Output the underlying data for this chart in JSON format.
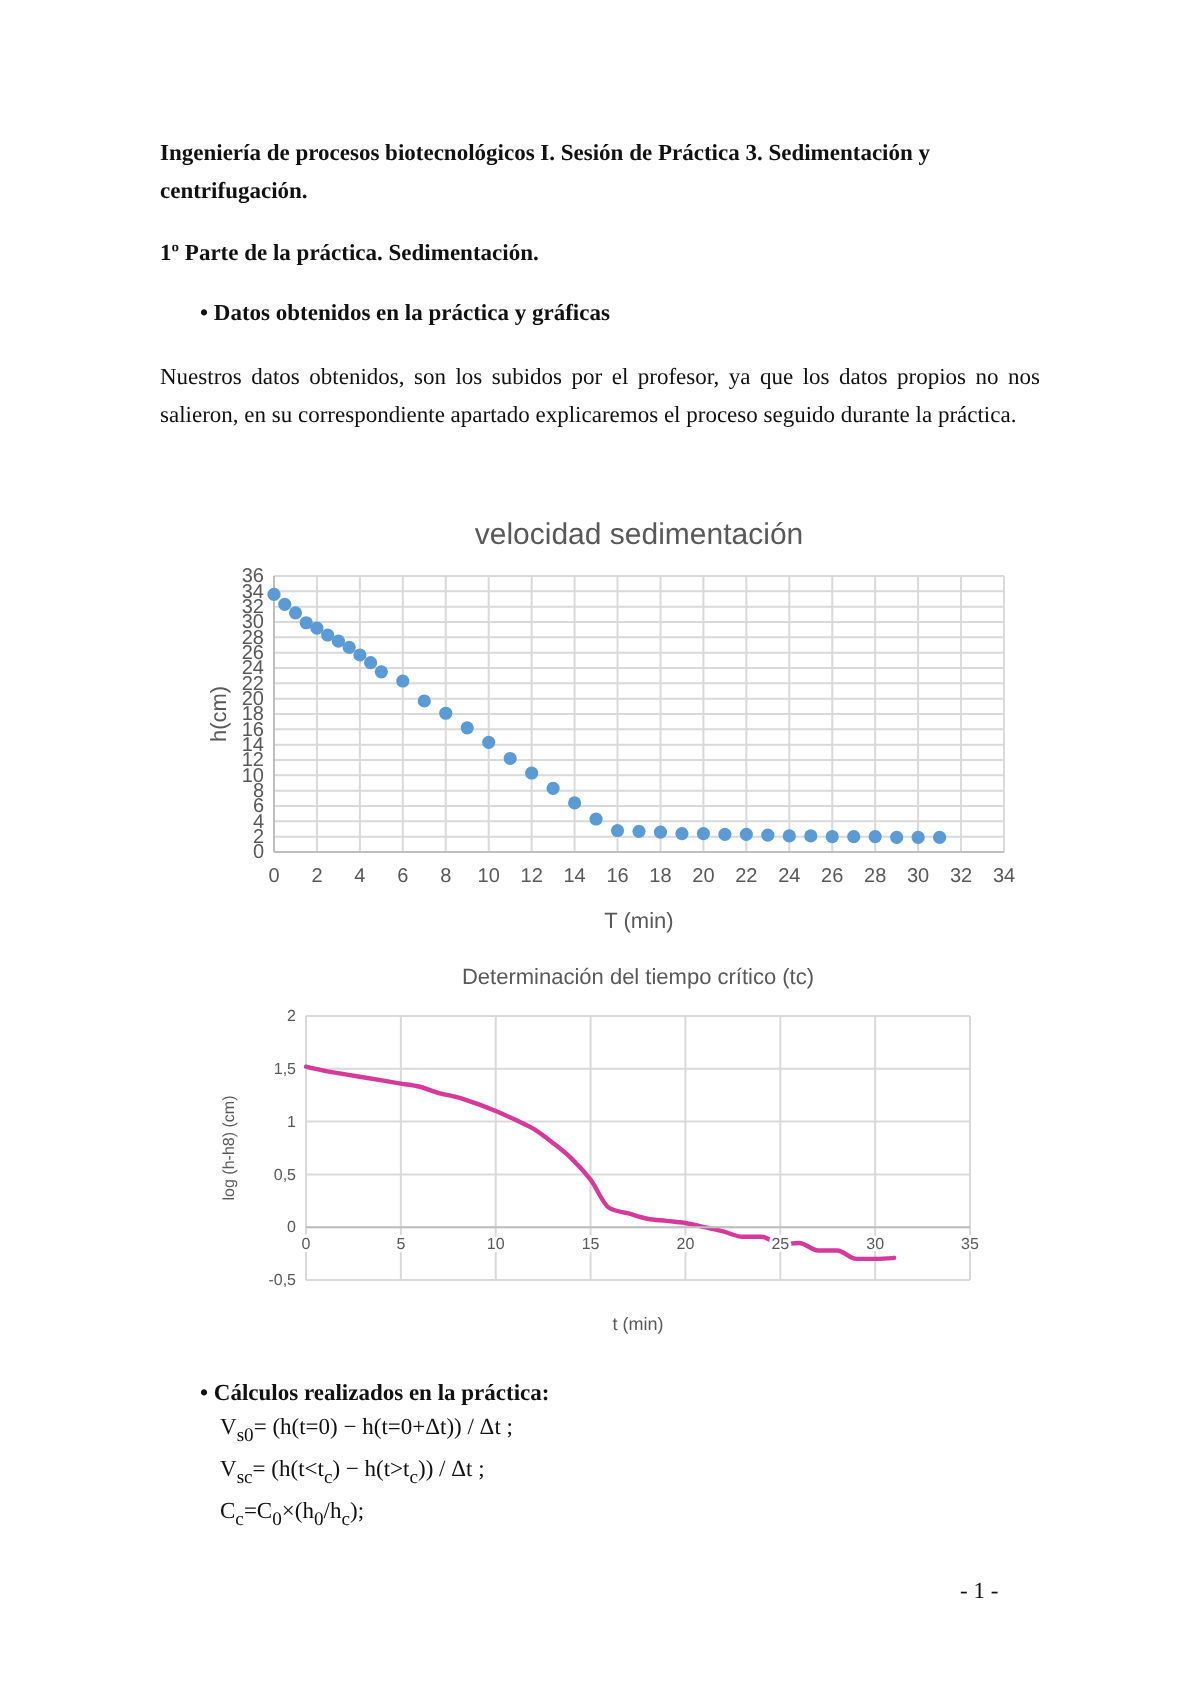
{
  "chart_data": [
    {
      "type": "scatter",
      "title": "velocidad sedimentación",
      "xlabel": "T (min)",
      "ylabel": "h(cm)",
      "annotations": [
        "Ingeniería de procesos biotecnológicos I. Sesión de Práctica 3. Sedimentación y centrifugación.",
        "1º Parte de la práctica. Sedimentación.",
        "•   Datos obtenidos en la práctica y gráficas",
        "Nuestros datos obtenidos, son los subidos por el profesor, ya que los datos propios no nos salieron, en su correspondiente apartado explicaremos el proceso seguido durante la práctica."
      ],
      "x": [
        0,
        0.5,
        1,
        1.5,
        2,
        2.5,
        3,
        3.5,
        4,
        4.5,
        5,
        6,
        7,
        8,
        9,
        10,
        11,
        12,
        13,
        14,
        15,
        16,
        17,
        18,
        19,
        20,
        21,
        22,
        23,
        24,
        25,
        26,
        27,
        28,
        29,
        30,
        31
      ],
      "series": [
        {
          "color": "#5b9bd5",
          "values": [
            33.6,
            32.3,
            31.2,
            29.9,
            29.2,
            28.3,
            27.5,
            26.7,
            25.7,
            24.7,
            23.5,
            22.3,
            19.7,
            18.1,
            16.2,
            14.3,
            12.2,
            10.3,
            8.3,
            6.4,
            4.3,
            2.8,
            2.7,
            2.6,
            2.4,
            2.4,
            2.3,
            2.3,
            2.2,
            2.1,
            2.1,
            2,
            2,
            2,
            1.9,
            1.9,
            1.9
          ]
        }
      ],
      "xlim": [
        0,
        34
      ],
      "xticks": [
        0,
        2,
        4,
        6,
        8,
        10,
        12,
        14,
        16,
        18,
        20,
        22,
        24,
        26,
        28,
        30,
        32,
        34
      ],
      "ylim": [
        0,
        36
      ],
      "yticks": [
        0,
        2,
        4,
        6,
        8,
        10,
        12,
        14,
        16,
        18,
        20,
        22,
        24,
        26,
        28,
        30,
        32,
        34,
        36
      ],
      "grid": true,
      "marker": "circle"
    },
    {
      "type": "line",
      "title": "Determinación del tiempo crítico (tc)",
      "xlabel": "t (min)",
      "ylabel": "log (h-h8) (cm)",
      "annotations": [
        "•   Cálculos realizados en la práctica:",
        "V$_{s0}$= (h(t=0) − h(t=0+Δt)) / Δt ;",
        "V$_{sc}$= (h(t<t$_{c}$) − h(t>t$_{c}$)) / Δt ;",
        "C$_{c}$=C$_{0}$×(h$_{0}$/h$_{c}$);",
        "- 1 -"
      ],
      "x": [
        0,
        1,
        2,
        3,
        4,
        5,
        6,
        7,
        8,
        9,
        10,
        11,
        12,
        13,
        14,
        15,
        16,
        17,
        18,
        19,
        20,
        21,
        22,
        23,
        24,
        25,
        26,
        27,
        28,
        29,
        30,
        31
      ],
      "series": [
        {
          "color": "#d6399a",
          "values": [
            1.52,
            1.48,
            1.45,
            1.42,
            1.39,
            1.36,
            1.33,
            1.27,
            1.23,
            1.17,
            1.1,
            1.02,
            0.93,
            0.8,
            0.65,
            0.45,
            0.18,
            0.13,
            0.08,
            0.06,
            0.04,
            0,
            -0.04,
            -0.09,
            -0.09,
            -0.16,
            -0.15,
            -0.22,
            -0.22,
            -0.3,
            -0.3,
            -0.29
          ]
        }
      ],
      "xlim": [
        0,
        35
      ],
      "xticks": [
        0,
        5,
        10,
        15,
        20,
        25,
        30,
        35
      ],
      "ylim": [
        -0.5,
        2
      ],
      "yticks": [
        {
          "value": -0.5,
          "label": "-0,5"
        },
        0,
        {
          "value": 0.5,
          "label": "0,5"
        },
        1,
        {
          "value": 1.5,
          "label": "1,5"
        },
        2
      ],
      "grid": true,
      "line_style": "solid"
    }
  ]
}
